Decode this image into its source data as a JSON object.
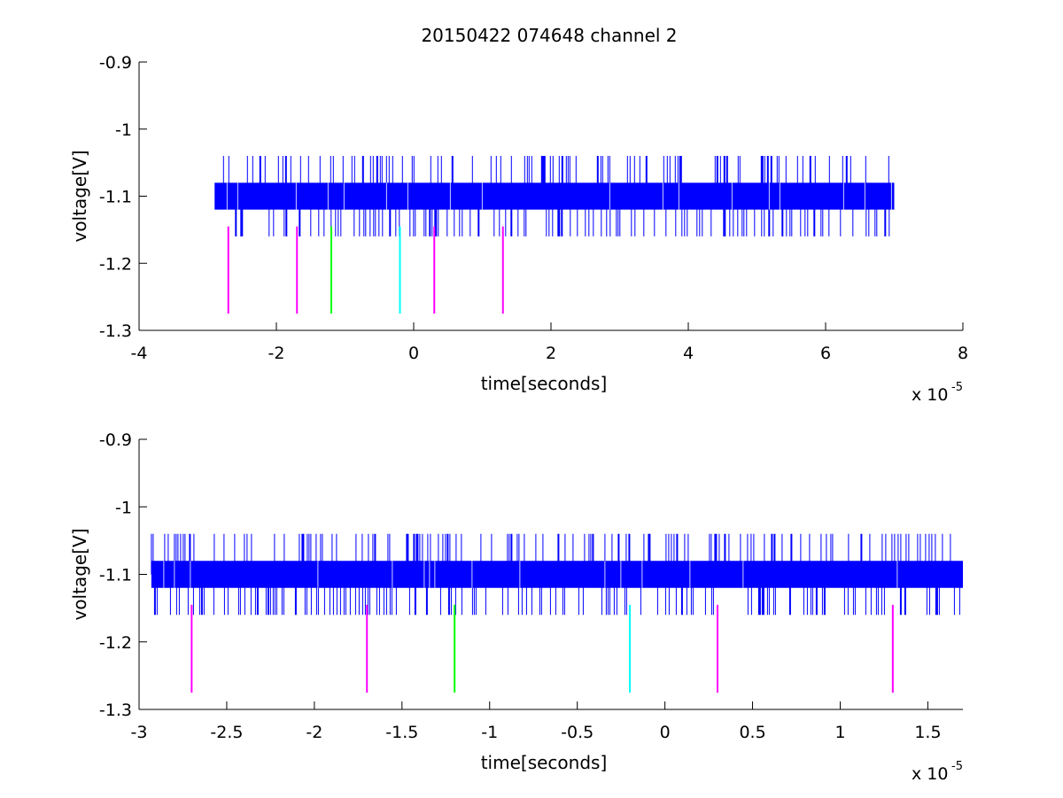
{
  "title": "20150422 074648 channel 2",
  "colors": {
    "signal": "#0000ff",
    "marker_magenta": "#ff00ff",
    "marker_green": "#00ff00",
    "marker_cyan": "#00ffff",
    "axis": "#000000",
    "background": "#ffffff"
  },
  "chart_data": [
    {
      "type": "line",
      "title": "20150422 074648 channel 2",
      "xlabel": "time[seconds]",
      "ylabel": "voltage[V]",
      "x_multiplier_base": "x 10",
      "x_multiplier_exp": "-5",
      "xlim": [
        -4e-05,
        8e-05
      ],
      "ylim": [
        -1.3,
        -0.9
      ],
      "x_ticks": [
        -4e-05,
        -2e-05,
        0,
        2e-05,
        4e-05,
        6e-05,
        8e-05
      ],
      "x_tick_labels": [
        "-4",
        "-2",
        "0",
        "2",
        "4",
        "6",
        "8"
      ],
      "y_ticks": [
        -1.3,
        -1.2,
        -1.1,
        -1.0,
        -0.9
      ],
      "y_tick_labels": [
        "-1.3",
        "-1.2",
        "-1.1",
        "-1",
        "-0.9"
      ],
      "grid": false,
      "signal": {
        "color": "#0000ff",
        "x_range": [
          -2.9e-05,
          7e-05
        ],
        "dense_band": [
          -1.12,
          -1.08
        ],
        "spike_high": -1.04,
        "spike_low": -1.16
      },
      "markers": [
        {
          "x": -2.7e-05,
          "color": "#ff00ff",
          "y_range": [
            -1.275,
            -1.145
          ]
        },
        {
          "x": -1.7e-05,
          "color": "#ff00ff",
          "y_range": [
            -1.275,
            -1.145
          ]
        },
        {
          "x": -1.2e-05,
          "color": "#00ff00",
          "y_range": [
            -1.275,
            -1.145
          ]
        },
        {
          "x": -2e-06,
          "color": "#00ffff",
          "y_range": [
            -1.275,
            -1.145
          ]
        },
        {
          "x": 3e-06,
          "color": "#ff00ff",
          "y_range": [
            -1.275,
            -1.145
          ]
        },
        {
          "x": 1.3e-05,
          "color": "#ff00ff",
          "y_range": [
            -1.275,
            -1.145
          ]
        }
      ]
    },
    {
      "type": "line",
      "title": "",
      "xlabel": "time[seconds]",
      "ylabel": "voltage[V]",
      "x_multiplier_base": "x 10",
      "x_multiplier_exp": "-5",
      "xlim": [
        -3e-05,
        1.7e-05
      ],
      "ylim": [
        -1.3,
        -0.9
      ],
      "x_ticks": [
        -3e-05,
        -2.5e-05,
        -2e-05,
        -1.5e-05,
        -1e-05,
        -5e-06,
        0,
        5e-06,
        1e-05,
        1.5e-05
      ],
      "x_tick_labels": [
        "-3",
        "-2.5",
        "-2",
        "-1.5",
        "-1",
        "-0.5",
        "0",
        "0.5",
        "1",
        "1.5"
      ],
      "y_ticks": [
        -1.3,
        -1.2,
        -1.1,
        -1.0,
        -0.9
      ],
      "y_tick_labels": [
        "-1.3",
        "-1.2",
        "-1.1",
        "-1",
        "-0.9"
      ],
      "grid": false,
      "signal": {
        "color": "#0000ff",
        "x_range": [
          -2.93e-05,
          1.7e-05
        ],
        "dense_band": [
          -1.12,
          -1.08
        ],
        "spike_high": -1.04,
        "spike_low": -1.16
      },
      "markers": [
        {
          "x": -2.7e-05,
          "color": "#ff00ff",
          "y_range": [
            -1.275,
            -1.145
          ]
        },
        {
          "x": -1.7e-05,
          "color": "#ff00ff",
          "y_range": [
            -1.275,
            -1.145
          ]
        },
        {
          "x": -1.2e-05,
          "color": "#00ff00",
          "y_range": [
            -1.275,
            -1.145
          ]
        },
        {
          "x": -2e-06,
          "color": "#00ffff",
          "y_range": [
            -1.275,
            -1.145
          ]
        },
        {
          "x": 3e-06,
          "color": "#ff00ff",
          "y_range": [
            -1.275,
            -1.145
          ]
        },
        {
          "x": 1.3e-05,
          "color": "#ff00ff",
          "y_range": [
            -1.275,
            -1.145
          ]
        }
      ]
    }
  ]
}
